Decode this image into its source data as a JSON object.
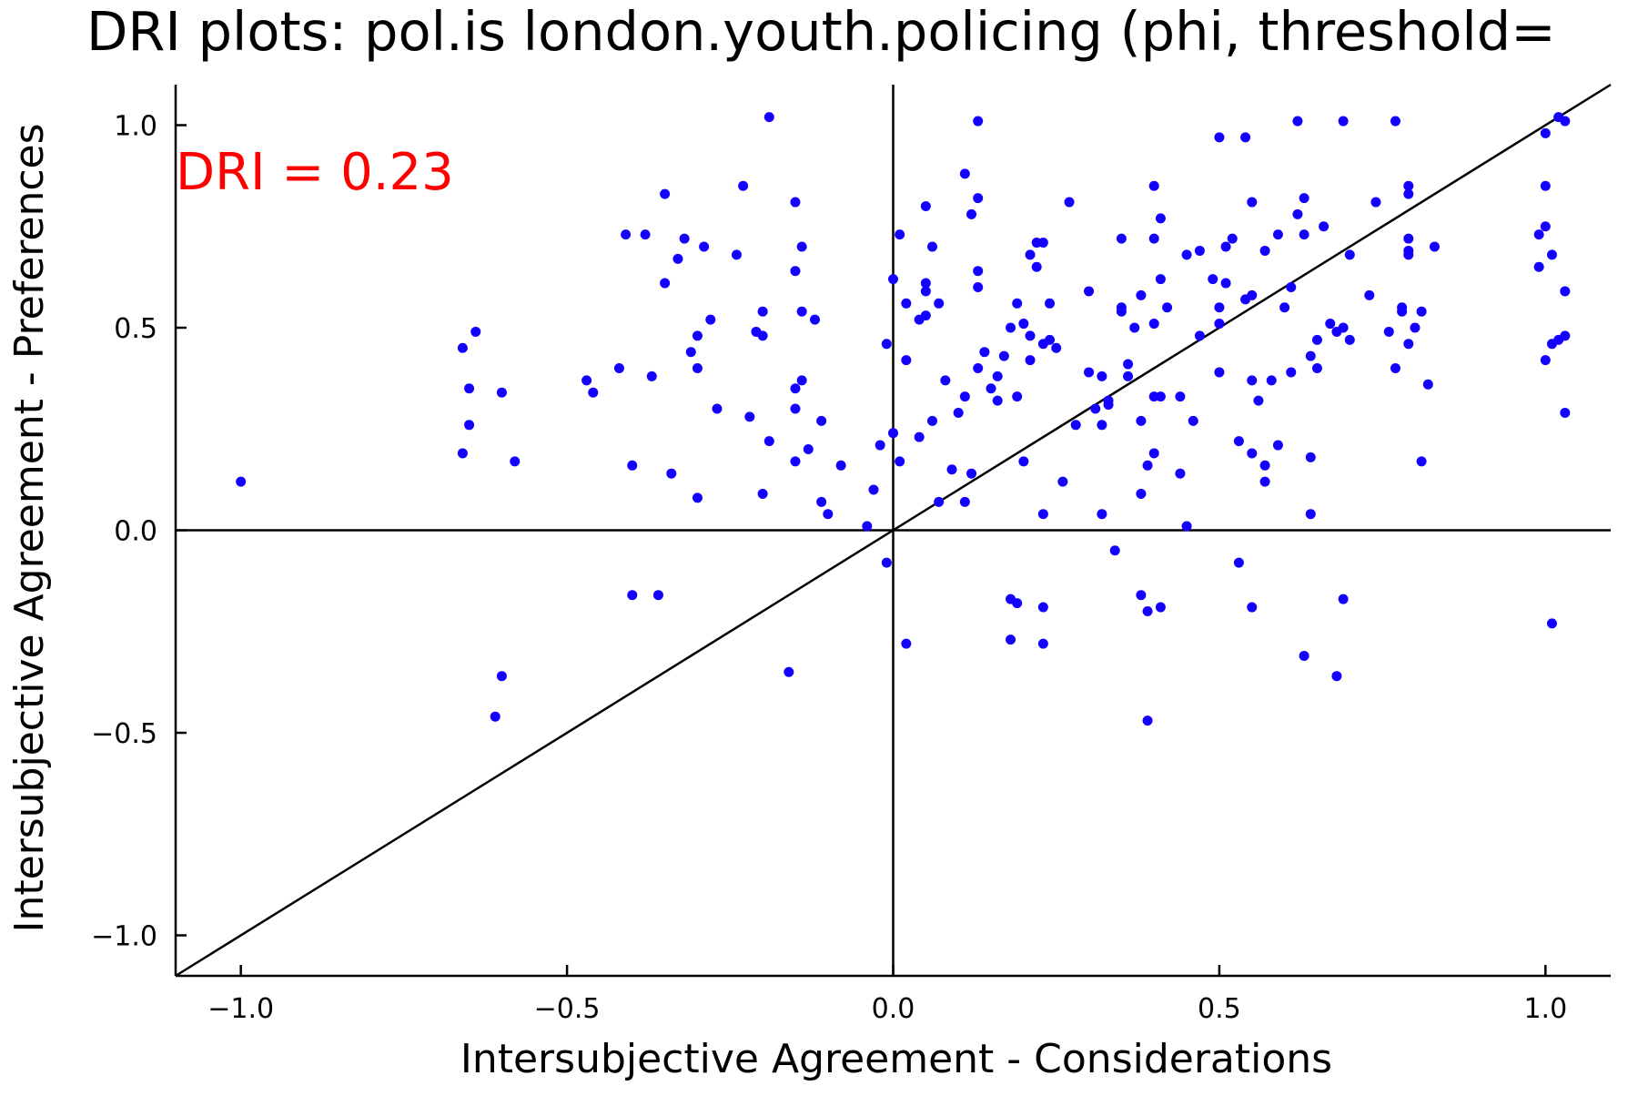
{
  "chart_data": {
    "type": "scatter",
    "title": "DRI plots: pol.is london.youth.policing (phi, threshold=",
    "xlabel": "Intersubjective Agreement - Considerations",
    "ylabel": "Intersubjective Agreement - Preferences",
    "annotation": "DRI = 0.23",
    "xlim": [
      -1.1,
      1.1
    ],
    "ylim": [
      -1.1,
      1.1
    ],
    "xticks": [
      -1.0,
      -0.5,
      0.0,
      0.5,
      1.0
    ],
    "yticks": [
      -1.0,
      -0.5,
      0.0,
      0.5,
      1.0
    ],
    "xtick_labels": [
      "−1.0",
      "−0.5",
      "0.0",
      "0.5",
      "1.0"
    ],
    "ytick_labels": [
      "−1.0",
      "−0.5",
      "0.0",
      "0.5",
      "1.0"
    ],
    "reference_lines": [
      "y = x",
      "x = 0",
      "y = 0"
    ],
    "grid": false,
    "colors": {
      "points": "#1400ff",
      "annotation": "#ff0000",
      "axes": "#000000"
    },
    "points": [
      [
        -1.0,
        0.12
      ],
      [
        -0.66,
        0.45
      ],
      [
        -0.65,
        0.35
      ],
      [
        -0.65,
        0.26
      ],
      [
        -0.66,
        0.19
      ],
      [
        -0.64,
        0.49
      ],
      [
        -0.6,
        0.34
      ],
      [
        -0.58,
        0.17
      ],
      [
        -0.6,
        -0.36
      ],
      [
        -0.61,
        -0.46
      ],
      [
        -0.47,
        0.37
      ],
      [
        -0.46,
        0.34
      ],
      [
        -0.42,
        0.4
      ],
      [
        -0.41,
        0.73
      ],
      [
        -0.38,
        0.73
      ],
      [
        -0.4,
        0.16
      ],
      [
        -0.37,
        0.38
      ],
      [
        -0.4,
        -0.16
      ],
      [
        -0.36,
        -0.16
      ],
      [
        -0.35,
        0.83
      ],
      [
        -0.35,
        0.61
      ],
      [
        -0.33,
        0.67
      ],
      [
        -0.32,
        0.72
      ],
      [
        -0.3,
        0.48
      ],
      [
        -0.31,
        0.44
      ],
      [
        -0.3,
        0.4
      ],
      [
        -0.3,
        0.08
      ],
      [
        -0.34,
        0.14
      ],
      [
        -0.29,
        0.7
      ],
      [
        -0.28,
        0.52
      ],
      [
        -0.27,
        0.3
      ],
      [
        -0.24,
        0.68
      ],
      [
        -0.23,
        0.85
      ],
      [
        -0.22,
        0.28
      ],
      [
        -0.21,
        0.49
      ],
      [
        -0.2,
        0.54
      ],
      [
        -0.2,
        0.48
      ],
      [
        -0.19,
        0.22
      ],
      [
        -0.2,
        0.09
      ],
      [
        -0.19,
        1.02
      ],
      [
        -0.15,
        0.81
      ],
      [
        -0.15,
        0.64
      ],
      [
        -0.14,
        0.7
      ],
      [
        -0.14,
        0.54
      ],
      [
        -0.12,
        0.52
      ],
      [
        -0.15,
        0.35
      ],
      [
        -0.14,
        0.37
      ],
      [
        -0.15,
        0.3
      ],
      [
        -0.15,
        0.17
      ],
      [
        -0.13,
        0.2
      ],
      [
        -0.11,
        0.27
      ],
      [
        -0.11,
        0.07
      ],
      [
        -0.1,
        0.04
      ],
      [
        -0.08,
        0.16
      ],
      [
        -0.16,
        -0.35
      ],
      [
        -0.04,
        0.01
      ],
      [
        -0.03,
        0.1
      ],
      [
        -0.02,
        0.21
      ],
      [
        -0.01,
        -0.08
      ],
      [
        -0.01,
        0.46
      ],
      [
        0.0,
        0.62
      ],
      [
        0.01,
        0.73
      ],
      [
        0.02,
        0.56
      ],
      [
        0.02,
        0.42
      ],
      [
        0.0,
        0.24
      ],
      [
        0.01,
        0.17
      ],
      [
        0.02,
        -0.28
      ],
      [
        0.04,
        0.52
      ],
      [
        0.05,
        0.53
      ],
      [
        0.05,
        0.59
      ],
      [
        0.05,
        0.61
      ],
      [
        0.05,
        0.8
      ],
      [
        0.06,
        0.7
      ],
      [
        0.06,
        0.27
      ],
      [
        0.04,
        0.23
      ],
      [
        0.07,
        0.56
      ],
      [
        0.08,
        0.37
      ],
      [
        0.07,
        0.07
      ],
      [
        0.09,
        0.15
      ],
      [
        0.1,
        0.29
      ],
      [
        0.11,
        0.33
      ],
      [
        0.11,
        0.07
      ],
      [
        0.11,
        0.88
      ],
      [
        0.12,
        0.78
      ],
      [
        0.13,
        1.01
      ],
      [
        0.13,
        0.82
      ],
      [
        0.13,
        0.64
      ],
      [
        0.13,
        0.6
      ],
      [
        0.13,
        0.4
      ],
      [
        0.14,
        0.44
      ],
      [
        0.12,
        0.14
      ],
      [
        0.15,
        0.35
      ],
      [
        0.16,
        0.32
      ],
      [
        0.16,
        0.38
      ],
      [
        0.17,
        0.43
      ],
      [
        0.18,
        0.5
      ],
      [
        0.19,
        0.56
      ],
      [
        0.19,
        0.33
      ],
      [
        0.2,
        0.51
      ],
      [
        0.2,
        0.17
      ],
      [
        0.21,
        0.68
      ],
      [
        0.21,
        0.48
      ],
      [
        0.21,
        0.42
      ],
      [
        0.22,
        0.65
      ],
      [
        0.22,
        0.71
      ],
      [
        0.23,
        0.71
      ],
      [
        0.23,
        0.46
      ],
      [
        0.24,
        0.56
      ],
      [
        0.24,
        0.47
      ],
      [
        0.25,
        0.45
      ],
      [
        0.26,
        0.12
      ],
      [
        0.23,
        0.04
      ],
      [
        0.18,
        -0.17
      ],
      [
        0.19,
        -0.18
      ],
      [
        0.18,
        -0.27
      ],
      [
        0.23,
        -0.19
      ],
      [
        0.23,
        -0.28
      ],
      [
        0.27,
        0.81
      ],
      [
        0.28,
        0.26
      ],
      [
        0.3,
        0.59
      ],
      [
        0.3,
        0.39
      ],
      [
        0.31,
        0.3
      ],
      [
        0.32,
        0.38
      ],
      [
        0.32,
        0.26
      ],
      [
        0.33,
        0.31
      ],
      [
        0.32,
        0.04
      ],
      [
        0.33,
        0.32
      ],
      [
        0.34,
        -0.05
      ],
      [
        0.35,
        0.72
      ],
      [
        0.35,
        0.55
      ],
      [
        0.35,
        0.54
      ],
      [
        0.36,
        0.41
      ],
      [
        0.36,
        0.38
      ],
      [
        0.37,
        0.5
      ],
      [
        0.38,
        0.58
      ],
      [
        0.38,
        0.27
      ],
      [
        0.38,
        0.09
      ],
      [
        0.39,
        0.16
      ],
      [
        0.4,
        0.33
      ],
      [
        0.4,
        0.72
      ],
      [
        0.41,
        0.33
      ],
      [
        0.41,
        0.77
      ],
      [
        0.41,
        0.62
      ],
      [
        0.42,
        0.55
      ],
      [
        0.4,
        0.85
      ],
      [
        0.4,
        0.51
      ],
      [
        0.4,
        0.19
      ],
      [
        0.38,
        -0.16
      ],
      [
        0.39,
        -0.2
      ],
      [
        0.41,
        -0.19
      ],
      [
        0.39,
        -0.47
      ],
      [
        0.44,
        0.33
      ],
      [
        0.44,
        0.14
      ],
      [
        0.45,
        0.68
      ],
      [
        0.47,
        0.69
      ],
      [
        0.47,
        0.48
      ],
      [
        0.46,
        0.27
      ],
      [
        0.45,
        0.01
      ],
      [
        0.49,
        0.62
      ],
      [
        0.5,
        0.39
      ],
      [
        0.5,
        0.55
      ],
      [
        0.5,
        0.51
      ],
      [
        0.51,
        0.7
      ],
      [
        0.51,
        0.61
      ],
      [
        0.52,
        0.72
      ],
      [
        0.5,
        0.97
      ],
      [
        0.53,
        0.22
      ],
      [
        0.54,
        0.97
      ],
      [
        0.54,
        0.57
      ],
      [
        0.55,
        0.37
      ],
      [
        0.55,
        0.58
      ],
      [
        0.55,
        0.19
      ],
      [
        0.56,
        0.32
      ],
      [
        0.57,
        0.12
      ],
      [
        0.57,
        0.16
      ],
      [
        0.53,
        -0.08
      ],
      [
        0.55,
        -0.19
      ],
      [
        0.55,
        0.81
      ],
      [
        0.57,
        0.69
      ],
      [
        0.58,
        0.37
      ],
      [
        0.59,
        0.21
      ],
      [
        0.59,
        0.73
      ],
      [
        0.6,
        0.55
      ],
      [
        0.61,
        0.6
      ],
      [
        0.61,
        0.39
      ],
      [
        0.62,
        0.78
      ],
      [
        0.62,
        1.01
      ],
      [
        0.63,
        0.73
      ],
      [
        0.63,
        0.82
      ],
      [
        0.64,
        0.43
      ],
      [
        0.64,
        0.18
      ],
      [
        0.65,
        0.4
      ],
      [
        0.65,
        0.47
      ],
      [
        0.64,
        0.04
      ],
      [
        0.66,
        0.75
      ],
      [
        0.63,
        -0.31
      ],
      [
        0.67,
        0.51
      ],
      [
        0.68,
        0.49
      ],
      [
        0.69,
        0.5
      ],
      [
        0.69,
        1.01
      ],
      [
        0.7,
        0.47
      ],
      [
        0.7,
        0.68
      ],
      [
        0.69,
        -0.17
      ],
      [
        0.68,
        -0.36
      ],
      [
        0.73,
        0.58
      ],
      [
        0.74,
        0.81
      ],
      [
        0.76,
        0.49
      ],
      [
        0.77,
        0.4
      ],
      [
        0.77,
        1.01
      ],
      [
        0.78,
        0.55
      ],
      [
        0.78,
        0.54
      ],
      [
        0.79,
        0.83
      ],
      [
        0.79,
        0.85
      ],
      [
        0.79,
        0.72
      ],
      [
        0.79,
        0.69
      ],
      [
        0.79,
        0.68
      ],
      [
        0.79,
        0.46
      ],
      [
        0.8,
        0.5
      ],
      [
        0.81,
        0.54
      ],
      [
        0.81,
        0.17
      ],
      [
        0.82,
        0.36
      ],
      [
        0.83,
        0.7
      ],
      [
        0.99,
        0.65
      ],
      [
        0.99,
        0.73
      ],
      [
        1.0,
        0.42
      ],
      [
        1.0,
        0.75
      ],
      [
        1.0,
        0.85
      ],
      [
        1.0,
        0.98
      ],
      [
        1.01,
        0.68
      ],
      [
        1.01,
        0.46
      ],
      [
        1.01,
        -0.23
      ],
      [
        1.02,
        1.02
      ],
      [
        1.02,
        0.47
      ],
      [
        1.03,
        0.59
      ],
      [
        1.03,
        0.48
      ],
      [
        1.03,
        0.29
      ],
      [
        1.03,
        1.01
      ]
    ]
  }
}
